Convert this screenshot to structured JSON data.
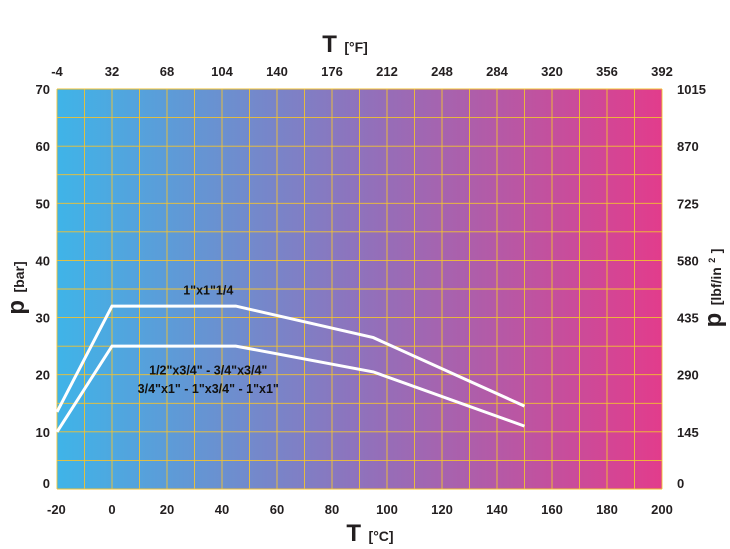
{
  "chart_data": {
    "type": "line",
    "x_axis_bottom": {
      "title": "T",
      "unit": "[°C]",
      "ticks": [
        -20,
        0,
        20,
        40,
        60,
        80,
        100,
        120,
        140,
        160,
        180,
        200
      ],
      "range": [
        -20,
        200
      ]
    },
    "x_axis_top": {
      "title": "T",
      "unit": "[°F]",
      "ticks": [
        -4,
        32,
        68,
        104,
        140,
        176,
        212,
        248,
        284,
        320,
        356,
        392
      ]
    },
    "y_axis_left": {
      "title": "p",
      "unit": "[bar]",
      "ticks": [
        0,
        10,
        20,
        30,
        40,
        50,
        60,
        70
      ],
      "range": [
        0,
        70
      ]
    },
    "y_axis_right": {
      "title": "p",
      "unit": "[lbf/in",
      "unit_sup": "2",
      "unit_close": "]",
      "ticks": [
        0,
        145,
        290,
        435,
        580,
        725,
        870,
        1015
      ]
    },
    "grid": true,
    "background_gradient": [
      "#3fb4e8",
      "#8f72bc",
      "#e23c8c"
    ],
    "grid_color": "#f2c230",
    "line_color": "#ffffff",
    "series": [
      {
        "name": "1\"x1\"1/4",
        "points": [
          [
            -20,
            13.5
          ],
          [
            0,
            32
          ],
          [
            45,
            32
          ],
          [
            95,
            26.5
          ],
          [
            150,
            14.5
          ]
        ]
      },
      {
        "name": "",
        "points": [
          [
            -20,
            10
          ],
          [
            0,
            25
          ],
          [
            45,
            25
          ],
          [
            95,
            20.5
          ],
          [
            150,
            11
          ]
        ]
      }
    ],
    "annotations": [
      {
        "text": "1\"x1\"1/4",
        "x": 35,
        "y": 34
      },
      {
        "text": "1/2\"x3/4\" - 3/4\"x3/4\"",
        "x": 35,
        "y": 20
      },
      {
        "text": "3/4\"x1\" - 1\"x3/4\" - 1\"x1\"",
        "x": 35,
        "y": 16.8
      }
    ]
  }
}
